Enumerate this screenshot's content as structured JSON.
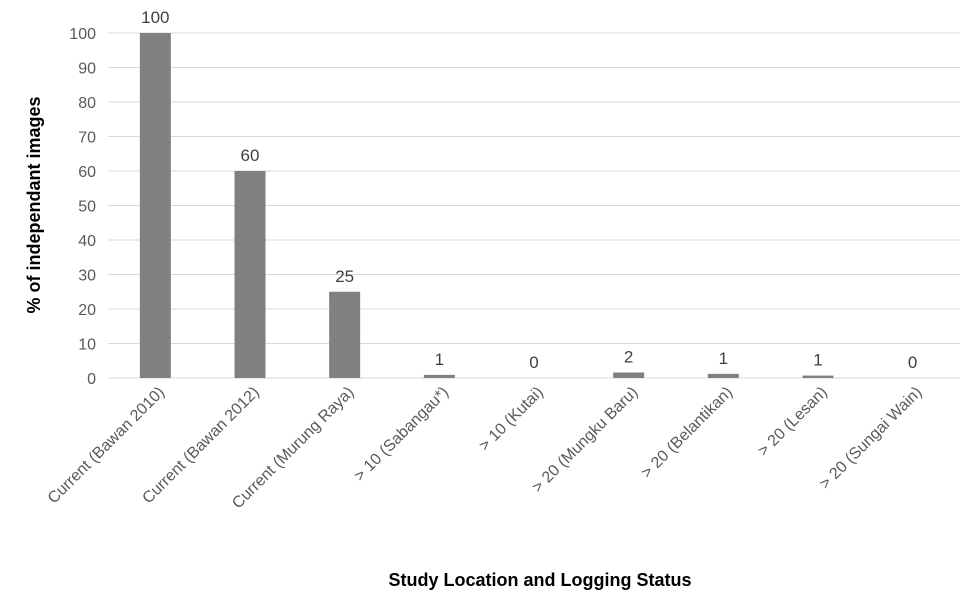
{
  "chart_data": {
    "type": "bar",
    "title": "",
    "xlabel": "Study Location and Logging Status",
    "ylabel": "% of independant images",
    "ylim": [
      0,
      100
    ],
    "yticks": [
      0,
      10,
      20,
      30,
      40,
      50,
      60,
      70,
      80,
      90,
      100
    ],
    "grid": true,
    "categories": [
      "Current (Bawan 2010)",
      "Current (Bawan 2012)",
      "Current (Murung Raya)",
      "> 10 (Sabangau*)",
      "> 10 (Kutai)",
      "> 20 (Mungku Baru)",
      "> 20 (Belantikan)",
      "> 20 (Lesan)",
      "> 20 (Sungai Wain)"
    ],
    "values": [
      100,
      60,
      25,
      0.9,
      0,
      1.6,
      1.2,
      0.7,
      0
    ],
    "data_labels": [
      "100",
      "60",
      "25",
      "1",
      "0",
      "2",
      "1",
      "1",
      "0"
    ],
    "colors": {
      "bar": "#808080",
      "grid": "#d9d9d9"
    }
  }
}
